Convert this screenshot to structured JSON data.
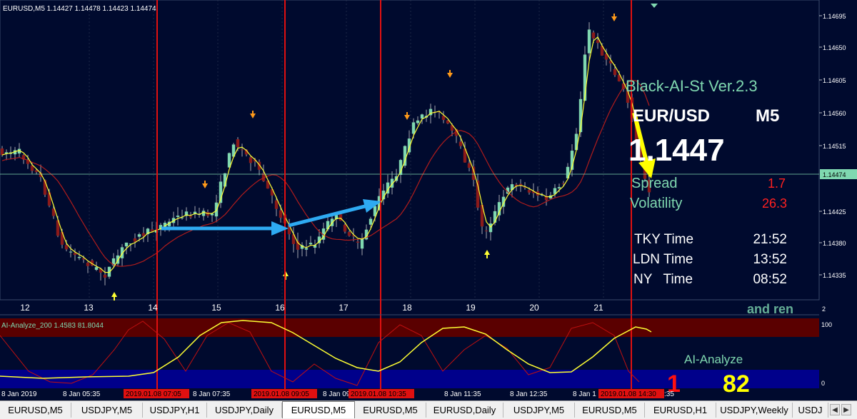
{
  "window": {
    "symbol_header": "EURUSD,M5  1.14427 1.14478 1.14423 1.14474"
  },
  "colors": {
    "background": "#000a2e",
    "candle_up": "#7fd8b0",
    "candle_down": "#8b1a1a",
    "ma_fast": "#ffff33",
    "ma_slow": "#b01c1c",
    "vline": "#e01010",
    "arrow": "#2eaaf2",
    "info_text": "#ffffff",
    "info_title": "#7fd8b0",
    "info_value_red": "#ff2020",
    "osc_top_band": "#5a0000",
    "osc_bottom_band": "#00008b"
  },
  "price_axis": {
    "labels": [
      "1.14695",
      "1.14650",
      "1.14605",
      "1.14560",
      "1.14515",
      "1.14474",
      "1.14425",
      "1.14380",
      "1.14335"
    ],
    "current_price": "1.14474"
  },
  "time_axis": {
    "labels": [
      "12",
      "13",
      "14",
      "15",
      "16",
      "17",
      "18",
      "19",
      "20",
      "21"
    ]
  },
  "overlay": {
    "title": "Black-AI-St Ver.2.3",
    "pair": "EUR/USD",
    "timeframe": "M5",
    "price": "1.1447",
    "spread_label": "Spread",
    "spread_value": "1.7",
    "volatility_label": "Volatility",
    "volatility_value": "26.3",
    "tky_label": "TKY Time",
    "tky_value": "21:52",
    "ldn_label": "LDN Time",
    "ldn_value": "13:52",
    "ny_label": "NY   Time",
    "ny_value": "08:52",
    "watermark": "and ren",
    "subwindow_value": "2"
  },
  "oscillator": {
    "header": "AI-Analyze_200 1.4583 81.8044",
    "axis_top": "100",
    "axis_bottom": "0",
    "title": "AI-Analyze",
    "big_left": "1",
    "big_right": "82"
  },
  "bottom_time": {
    "labels": [
      "8 Jan 2019",
      "8 Jan 05:35",
      "8 Jan 07:35",
      "8 Jan 09:",
      "8 Jan 11:35",
      "8 Jan 12:35",
      "8 Jan 1",
      ":35"
    ],
    "red_labels": [
      "2019.01.08 07:05",
      "2019.01.08 09:05",
      "2019.01.08 10:35",
      "2019.01.08 14:30"
    ]
  },
  "tabs": [
    "EURUSD,M5",
    "USDJPY,M5",
    "USDJPY,H1",
    "USDJPY,Daily",
    "EURUSD,M5",
    "EURUSD,M5",
    "EURUSD,Daily",
    "USDJPY,M5",
    "EURUSD,M5",
    "EURUSD,H1",
    "USDJPY,Weekly",
    "USDJ"
  ],
  "active_tab": 4,
  "icons": {
    "tab_scroll_left": "triangle-left-icon",
    "tab_scroll_right": "triangle-right-icon"
  }
}
